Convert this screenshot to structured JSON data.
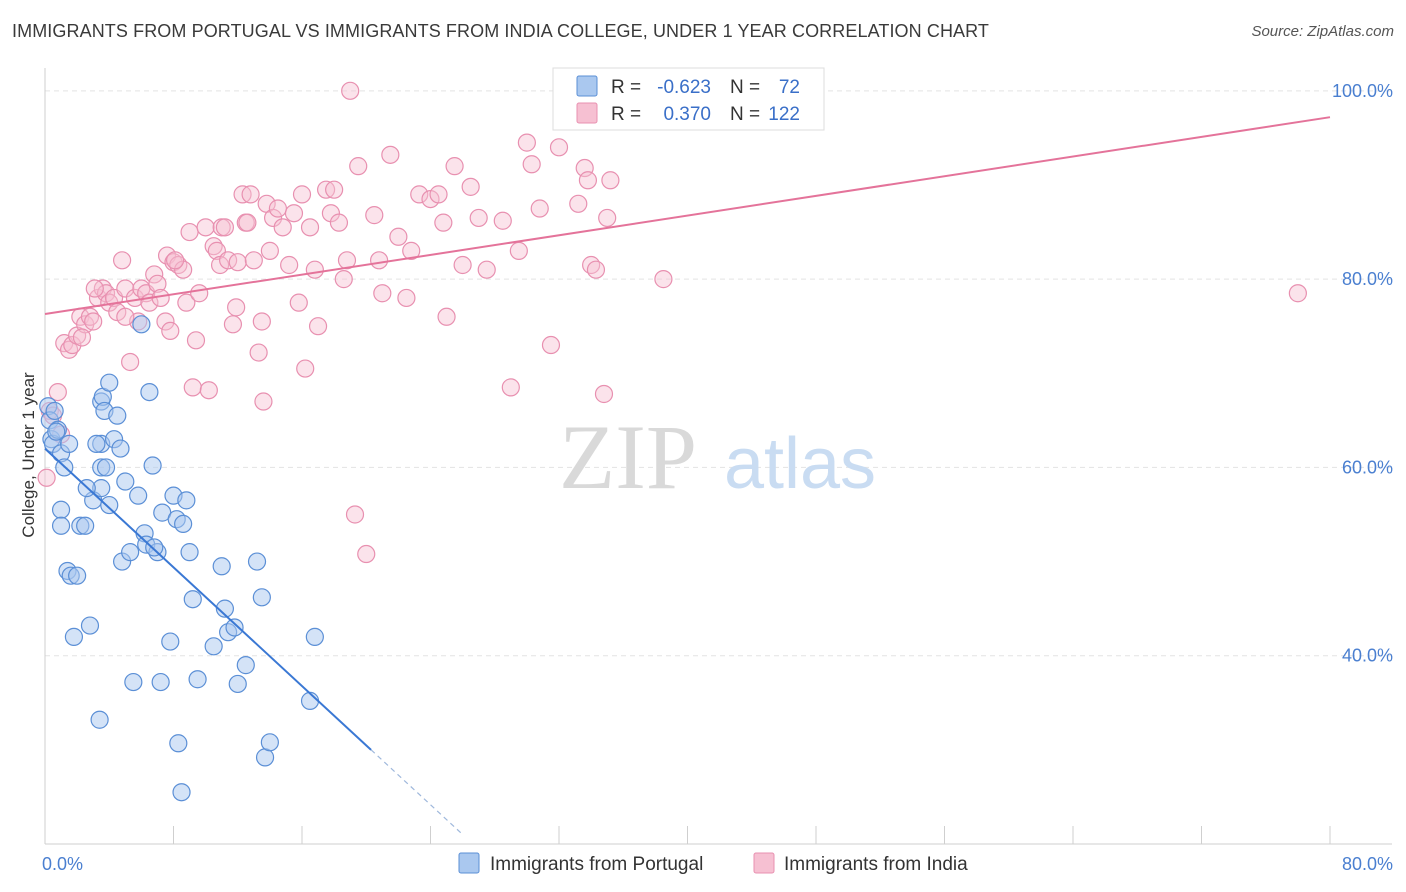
{
  "title": "IMMIGRANTS FROM PORTUGAL VS IMMIGRANTS FROM INDIA COLLEGE, UNDER 1 YEAR CORRELATION CHART",
  "source": "Source: ZipAtlas.com",
  "watermark": {
    "zip": "ZIP",
    "atlas": "atlas"
  },
  "colors": {
    "portugal_fill": "#aac8ef",
    "portugal_stroke": "#5b8fd6",
    "portugal_line": "#3a78d4",
    "india_fill": "#f6c0d2",
    "india_stroke": "#e890b0",
    "india_line": "#e4739a",
    "tick_text": "#4a7fd0",
    "grid": "#e3e3e3"
  },
  "legend": {
    "rows": [
      {
        "r_label": "R =",
        "r_value": "-0.623",
        "n_label": "N =",
        "n_value": "72"
      },
      {
        "r_label": "R =",
        "r_value": "0.370",
        "n_label": "N =",
        "n_value": "122"
      }
    ]
  },
  "chart_data": {
    "type": "scatter",
    "ylabel": "College, Under 1 year",
    "xlim": [
      0,
      80
    ],
    "ylim": [
      20,
      102
    ],
    "x_tick_labels": [
      {
        "value": 0,
        "label": "0.0%"
      },
      {
        "value": 80,
        "label": "80.0%"
      }
    ],
    "y_tick_labels": [
      {
        "value": 40,
        "label": "40.0%"
      },
      {
        "value": 60,
        "label": "60.0%"
      },
      {
        "value": 80,
        "label": "80.0%"
      },
      {
        "value": 100,
        "label": "100.0%"
      }
    ],
    "grid": true,
    "legend_position": "top-center",
    "series": [
      {
        "name": "Immigrants from Portugal",
        "trendline": {
          "x0": 0,
          "y0": 62.0,
          "x1": 20.3,
          "y1": 30.0,
          "dashed_to_x": 26.0
        },
        "points": [
          [
            0.2,
            66.5
          ],
          [
            0.3,
            65.0
          ],
          [
            0.4,
            63.0
          ],
          [
            0.5,
            62.5
          ],
          [
            0.6,
            66.0
          ],
          [
            0.8,
            64.0
          ],
          [
            1.0,
            61.5
          ],
          [
            1.2,
            60.0
          ],
          [
            1.0,
            55.5
          ],
          [
            1.0,
            53.8
          ],
          [
            1.4,
            49.0
          ],
          [
            1.6,
            48.5
          ],
          [
            1.8,
            42.0
          ],
          [
            2.0,
            48.5
          ],
          [
            2.2,
            53.8
          ],
          [
            2.5,
            53.8
          ],
          [
            2.8,
            43.2
          ],
          [
            3.0,
            56.5
          ],
          [
            3.5,
            60.0
          ],
          [
            3.5,
            62.5
          ],
          [
            3.5,
            57.8
          ],
          [
            3.2,
            62.5
          ],
          [
            3.4,
            33.2
          ],
          [
            3.5,
            67.0
          ],
          [
            3.6,
            67.5
          ],
          [
            3.7,
            66.0
          ],
          [
            3.8,
            60.0
          ],
          [
            4.0,
            69.0
          ],
          [
            4.0,
            56.0
          ],
          [
            4.3,
            63.0
          ],
          [
            4.5,
            65.5
          ],
          [
            4.7,
            62.0
          ],
          [
            4.8,
            50.0
          ],
          [
            5.0,
            58.5
          ],
          [
            5.3,
            51.0
          ],
          [
            5.5,
            37.2
          ],
          [
            5.8,
            57.0
          ],
          [
            6.0,
            75.2
          ],
          [
            6.2,
            53.0
          ],
          [
            6.3,
            51.8
          ],
          [
            6.5,
            68.0
          ],
          [
            6.7,
            60.2
          ],
          [
            7.0,
            51.0
          ],
          [
            7.2,
            37.2
          ],
          [
            7.3,
            55.2
          ],
          [
            7.8,
            41.5
          ],
          [
            8.0,
            57.0
          ],
          [
            8.2,
            54.5
          ],
          [
            8.3,
            30.7
          ],
          [
            8.5,
            25.5
          ],
          [
            8.6,
            54.0
          ],
          [
            8.8,
            56.5
          ],
          [
            9.0,
            51.0
          ],
          [
            9.2,
            46.0
          ],
          [
            9.5,
            37.5
          ],
          [
            10.5,
            41.0
          ],
          [
            11.0,
            49.5
          ],
          [
            11.2,
            45.0
          ],
          [
            11.4,
            42.5
          ],
          [
            11.8,
            43.0
          ],
          [
            12.0,
            37.0
          ],
          [
            12.5,
            39.0
          ],
          [
            13.2,
            50.0
          ],
          [
            13.5,
            46.2
          ],
          [
            13.7,
            29.2
          ],
          [
            14.0,
            30.8
          ],
          [
            16.5,
            35.2
          ],
          [
            16.8,
            42.0
          ],
          [
            2.6,
            57.8
          ],
          [
            1.5,
            62.5
          ],
          [
            0.7,
            63.8
          ],
          [
            6.8,
            51.5
          ]
        ]
      },
      {
        "name": "Immigrants from India",
        "trendline": {
          "x0": 0,
          "y0": 76.3,
          "x1": 80,
          "y1": 97.2
        },
        "points": [
          [
            0.1,
            58.9
          ],
          [
            0.3,
            66.0
          ],
          [
            0.5,
            65.5
          ],
          [
            0.8,
            68.0
          ],
          [
            1.0,
            63.5
          ],
          [
            1.2,
            73.2
          ],
          [
            1.5,
            72.5
          ],
          [
            1.7,
            73.0
          ],
          [
            2.0,
            74.0
          ],
          [
            2.2,
            76.0
          ],
          [
            2.5,
            75.2
          ],
          [
            2.8,
            76.0
          ],
          [
            3.0,
            75.5
          ],
          [
            3.3,
            78.0
          ],
          [
            3.6,
            79.0
          ],
          [
            3.8,
            78.5
          ],
          [
            4.0,
            77.5
          ],
          [
            4.3,
            78.0
          ],
          [
            4.5,
            76.5
          ],
          [
            4.8,
            82.0
          ],
          [
            5.0,
            79.0
          ],
          [
            5.3,
            71.2
          ],
          [
            5.6,
            78.0
          ],
          [
            5.8,
            75.5
          ],
          [
            6.0,
            79.0
          ],
          [
            6.3,
            78.5
          ],
          [
            6.5,
            77.5
          ],
          [
            6.8,
            80.5
          ],
          [
            7.0,
            79.5
          ],
          [
            7.2,
            78.0
          ],
          [
            7.5,
            75.5
          ],
          [
            7.8,
            74.5
          ],
          [
            7.6,
            82.5
          ],
          [
            8.0,
            81.8
          ],
          [
            8.3,
            81.5
          ],
          [
            8.6,
            81.0
          ],
          [
            8.8,
            77.5
          ],
          [
            9.0,
            85.0
          ],
          [
            9.2,
            68.5
          ],
          [
            9.4,
            73.5
          ],
          [
            9.6,
            78.5
          ],
          [
            10.0,
            85.5
          ],
          [
            10.2,
            68.2
          ],
          [
            10.5,
            83.5
          ],
          [
            10.7,
            83.0
          ],
          [
            10.9,
            81.5
          ],
          [
            11.0,
            85.5
          ],
          [
            11.2,
            85.5
          ],
          [
            11.4,
            82.0
          ],
          [
            11.7,
            75.2
          ],
          [
            11.9,
            77.0
          ],
          [
            12.0,
            81.8
          ],
          [
            12.3,
            89.0
          ],
          [
            12.5,
            86.0
          ],
          [
            12.8,
            89.0
          ],
          [
            13.0,
            82.0
          ],
          [
            13.3,
            72.2
          ],
          [
            13.5,
            75.5
          ],
          [
            13.6,
            67.0
          ],
          [
            13.8,
            88.0
          ],
          [
            14.0,
            83.0
          ],
          [
            14.2,
            86.5
          ],
          [
            14.5,
            87.5
          ],
          [
            14.8,
            85.5
          ],
          [
            15.2,
            81.5
          ],
          [
            15.5,
            87.0
          ],
          [
            15.8,
            77.5
          ],
          [
            16.0,
            89.0
          ],
          [
            16.2,
            70.5
          ],
          [
            16.5,
            85.5
          ],
          [
            16.8,
            81.0
          ],
          [
            17.0,
            75.0
          ],
          [
            17.5,
            89.5
          ],
          [
            17.8,
            87.0
          ],
          [
            18.0,
            89.5
          ],
          [
            18.3,
            86.0
          ],
          [
            18.6,
            80.0
          ],
          [
            18.8,
            82.0
          ],
          [
            19.0,
            100.0
          ],
          [
            19.3,
            55.0
          ],
          [
            19.5,
            92.0
          ],
          [
            20.0,
            50.8
          ],
          [
            20.5,
            86.8
          ],
          [
            20.8,
            82.0
          ],
          [
            21.0,
            78.5
          ],
          [
            21.5,
            93.2
          ],
          [
            22.0,
            84.5
          ],
          [
            22.5,
            78.0
          ],
          [
            22.8,
            83.0
          ],
          [
            23.3,
            89.0
          ],
          [
            24.0,
            88.5
          ],
          [
            24.5,
            89.0
          ],
          [
            24.8,
            86.0
          ],
          [
            25.0,
            76.0
          ],
          [
            25.5,
            92.0
          ],
          [
            26.0,
            81.5
          ],
          [
            26.5,
            89.8
          ],
          [
            27.0,
            86.5
          ],
          [
            27.5,
            81.0
          ],
          [
            28.5,
            86.2
          ],
          [
            29.0,
            68.5
          ],
          [
            29.5,
            83.0
          ],
          [
            30.0,
            94.5
          ],
          [
            30.3,
            92.2
          ],
          [
            30.8,
            87.5
          ],
          [
            31.5,
            73.0
          ],
          [
            32.0,
            94.0
          ],
          [
            33.2,
            88.0
          ],
          [
            33.6,
            91.8
          ],
          [
            33.8,
            90.5
          ],
          [
            34.0,
            81.5
          ],
          [
            34.3,
            81.0
          ],
          [
            34.8,
            67.8
          ],
          [
            35.0,
            86.5
          ],
          [
            35.2,
            90.5
          ],
          [
            38.5,
            80.0
          ],
          [
            78.0,
            78.5
          ],
          [
            2.3,
            73.8
          ],
          [
            3.1,
            79.0
          ],
          [
            5.0,
            76.0
          ],
          [
            8.1,
            82.0
          ],
          [
            12.6,
            86.0
          ]
        ]
      }
    ]
  },
  "bottom_legend": [
    {
      "label": "Immigrants from Portugal"
    },
    {
      "label": "Immigrants from India"
    }
  ]
}
